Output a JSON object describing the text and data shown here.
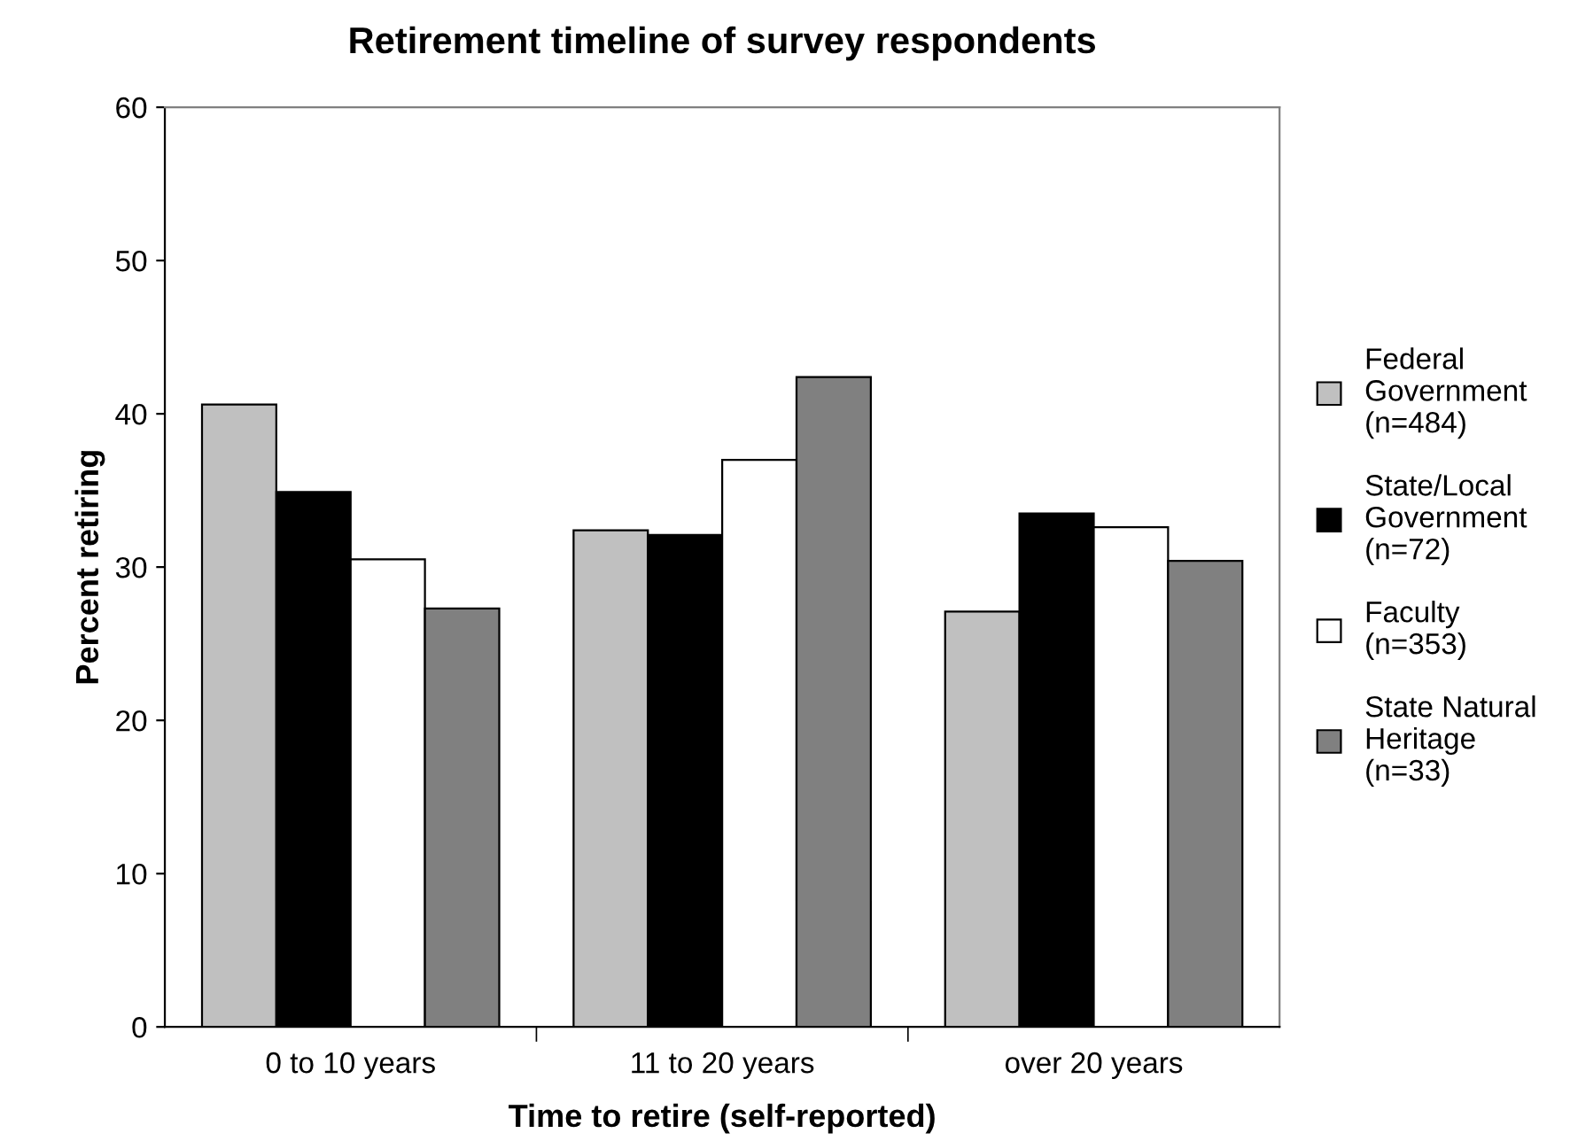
{
  "chart_data": {
    "type": "bar",
    "title": "Retirement timeline of survey respondents",
    "xlabel": "Time to retire (self-reported)",
    "ylabel": "Percent retiring",
    "categories": [
      "0 to 10 years",
      "11 to 20 years",
      "over 20 years"
    ],
    "series": [
      {
        "name": "Federal\nGovernment\n(n=484)",
        "color": "#c0c0c0",
        "values": [
          40.6,
          32.4,
          27.1
        ]
      },
      {
        "name": "State/Local\nGovernment\n(n=72)",
        "color": "#000000",
        "values": [
          34.9,
          32.1,
          33.5
        ]
      },
      {
        "name": "Faculty\n(n=353)",
        "color": "#ffffff",
        "values": [
          30.5,
          37.0,
          32.6
        ]
      },
      {
        "name": "State Natural\nHeritage\n(n=33)",
        "color": "#808080",
        "values": [
          27.3,
          42.4,
          30.4
        ]
      }
    ],
    "ylim": [
      0,
      60
    ],
    "yticks": [
      0,
      10,
      20,
      30,
      40,
      50,
      60
    ],
    "grid": false,
    "legend": "right"
  }
}
